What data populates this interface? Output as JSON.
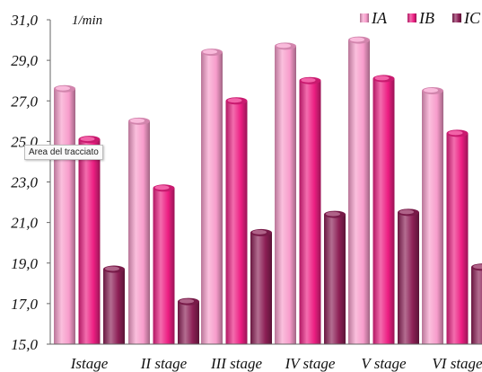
{
  "chart_data": {
    "type": "bar",
    "unit_label": "1/min",
    "categories": [
      "Istage",
      "II stage",
      "III stage",
      "IV stage",
      "V stage",
      "VI stage"
    ],
    "series": [
      {
        "name": "IA",
        "color": "#f79ccb",
        "values": [
          27.6,
          26.0,
          29.4,
          29.7,
          30.0,
          27.5
        ]
      },
      {
        "name": "IB",
        "color": "#ec1e82",
        "values": [
          25.1,
          22.7,
          27.0,
          28.0,
          28.1,
          25.4
        ]
      },
      {
        "name": "IC",
        "color": "#8c1f55",
        "values": [
          18.7,
          17.1,
          20.5,
          21.4,
          21.5,
          18.8
        ]
      }
    ],
    "ylim": [
      15.0,
      31.0
    ],
    "yticks": [
      "15,0",
      "17,0",
      "19,0",
      "21,0",
      "23,0",
      "25,0",
      "27,0",
      "29,0",
      "31,0"
    ],
    "legend_position": "top-right",
    "grid": false
  },
  "tooltip": {
    "text": "Area del tracciato"
  },
  "colors": {
    "axis": "#666666",
    "background": "#ffffff"
  }
}
